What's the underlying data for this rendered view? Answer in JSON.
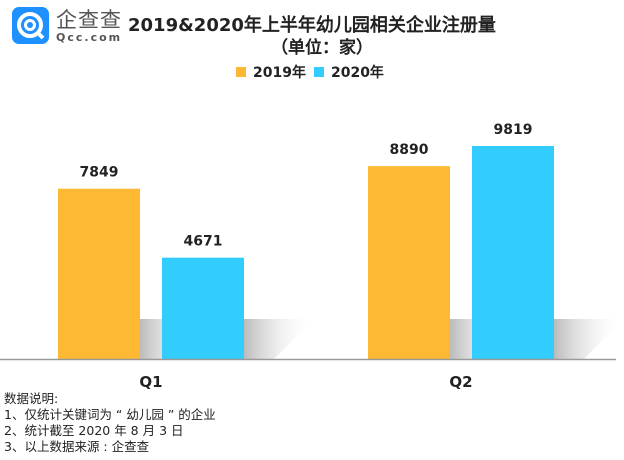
{
  "logo": {
    "name": "企查查",
    "domain": "Qcc.com"
  },
  "chart_data": {
    "type": "bar",
    "title": "2019&2020年上半年幼儿园相关企业注册量",
    "subtitle": "（单位：家）",
    "categories": [
      "Q1",
      "Q2"
    ],
    "series": [
      {
        "name": "2019年",
        "color": "#FDB933",
        "values": [
          7849,
          8890
        ]
      },
      {
        "name": "2020年",
        "color": "#33CCFF",
        "values": [
          4671,
          9819
        ]
      }
    ],
    "legend_position": "top-center",
    "grid": false,
    "ylim": [
      0,
      9819
    ]
  },
  "notes": [
    "数据说明:",
    "1、仅统计关键词为 “ 幼儿园 ” 的企业",
    "2、统计截至 2020 年 8 月 3 日",
    "3、以上数据来源 : 企查查"
  ]
}
